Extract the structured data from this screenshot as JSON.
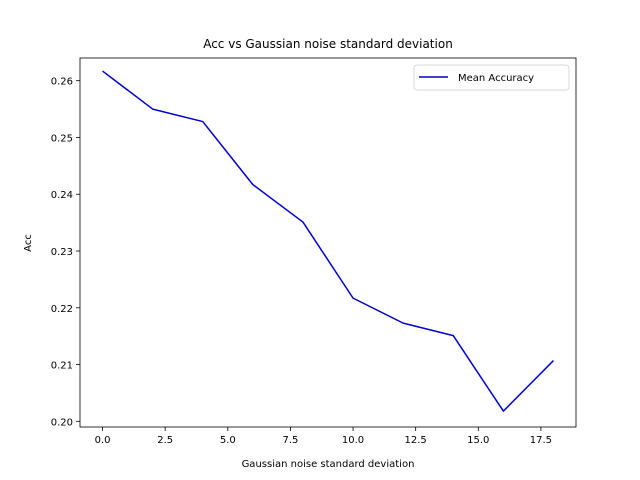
{
  "chart_data": {
    "type": "line",
    "title": "Acc vs Gaussian noise standard deviation",
    "xlabel": "Gaussian noise standard deviation",
    "ylabel": "Acc",
    "xlim": [
      -0.9,
      18.9
    ],
    "ylim": [
      0.199,
      0.264
    ],
    "xticks": [
      0.0,
      2.5,
      5.0,
      7.5,
      10.0,
      12.5,
      15.0,
      17.5
    ],
    "xtick_labels": [
      "0.0",
      "2.5",
      "5.0",
      "7.5",
      "10.0",
      "12.5",
      "15.0",
      "17.5"
    ],
    "yticks": [
      0.2,
      0.21,
      0.22,
      0.23,
      0.24,
      0.25,
      0.26
    ],
    "ytick_labels": [
      "0.20",
      "0.21",
      "0.22",
      "0.23",
      "0.24",
      "0.25",
      "0.26"
    ],
    "grid": false,
    "legend_position": "top-right",
    "series": [
      {
        "name": "Mean Accuracy",
        "color": "#0000cc",
        "x": [
          0,
          2,
          4,
          6,
          8,
          10,
          12,
          14,
          16,
          18
        ],
        "y": [
          0.2617,
          0.255,
          0.2528,
          0.2417,
          0.2351,
          0.2217,
          0.2173,
          0.2151,
          0.2018,
          0.2107
        ]
      }
    ]
  }
}
